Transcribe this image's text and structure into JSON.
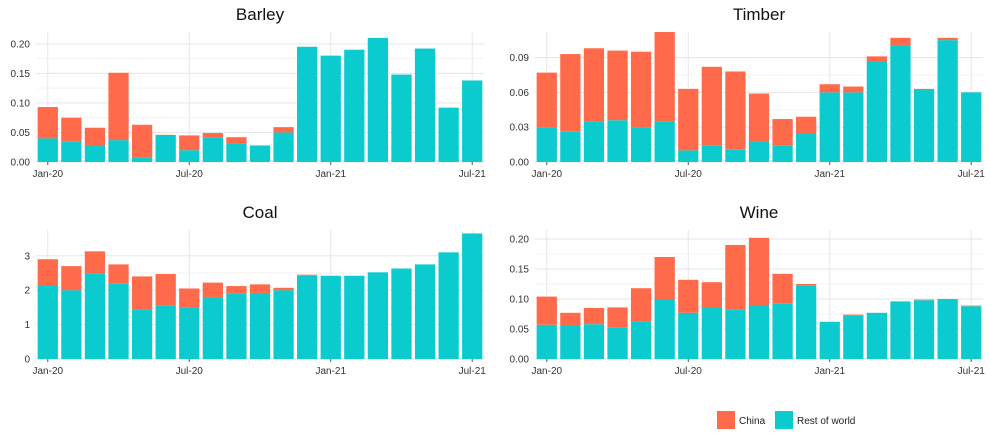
{
  "legend": {
    "items": [
      {
        "label": "China",
        "color": "#FF6B4A"
      },
      {
        "label": "Rest of world",
        "color": "#0CCBCF"
      }
    ]
  },
  "chart_data": [
    {
      "type": "bar",
      "stacked": true,
      "title": "Barley",
      "categories": [
        "Jan-20",
        "Feb-20",
        "Mar-20",
        "Apr-20",
        "May-20",
        "Jun-20",
        "Jul-20",
        "Aug-20",
        "Sep-20",
        "Oct-20",
        "Nov-20",
        "Dec-20",
        "Jan-21",
        "Feb-21",
        "Mar-21",
        "Apr-21",
        "May-21",
        "Jun-21",
        "Jul-21"
      ],
      "series": [
        {
          "name": "Rest of world",
          "values": [
            0.04,
            0.035,
            0.027,
            0.037,
            0.008,
            0.044,
            0.02,
            0.042,
            0.032,
            0.028,
            0.05,
            0.195,
            0.18,
            0.19,
            0.21,
            0.148,
            0.192,
            0.092,
            0.138
          ]
        },
        {
          "name": "China",
          "values": [
            0.053,
            0.04,
            0.031,
            0.114,
            0.055,
            0.002,
            0.025,
            0.007,
            0.01,
            0.0,
            0.009,
            0.0,
            0.0,
            0.0,
            0.0,
            0.0,
            0.0,
            0.0,
            0.0
          ]
        }
      ],
      "x_tick_labels": [
        "Jan-20",
        "Jul-20",
        "Jan-21",
        "Jul-21"
      ],
      "y_ticks": [
        0.0,
        0.05,
        0.1,
        0.15,
        0.2
      ],
      "y_tick_labels": [
        "0.00",
        "0.05",
        "0.10",
        "0.15",
        "0.20"
      ],
      "ylim": [
        0,
        0.22
      ]
    },
    {
      "type": "bar",
      "stacked": true,
      "title": "Timber",
      "categories": [
        "Jan-20",
        "Feb-20",
        "Mar-20",
        "Apr-20",
        "May-20",
        "Jun-20",
        "Jul-20",
        "Aug-20",
        "Sep-20",
        "Oct-20",
        "Nov-20",
        "Dec-20",
        "Jan-21",
        "Feb-21",
        "Mar-21",
        "Apr-21",
        "May-21",
        "Jun-21",
        "Jul-21"
      ],
      "series": [
        {
          "name": "Rest of world",
          "values": [
            0.03,
            0.026,
            0.035,
            0.036,
            0.03,
            0.035,
            0.01,
            0.014,
            0.011,
            0.018,
            0.014,
            0.025,
            0.06,
            0.06,
            0.087,
            0.1,
            0.062,
            0.105,
            0.06
          ]
        },
        {
          "name": "China",
          "values": [
            0.047,
            0.067,
            0.063,
            0.06,
            0.065,
            0.077,
            0.053,
            0.068,
            0.067,
            0.041,
            0.023,
            0.014,
            0.007,
            0.005,
            0.004,
            0.007,
            0.001,
            0.002,
            0.0
          ]
        }
      ],
      "x_tick_labels": [
        "Jan-20",
        "Jul-20",
        "Jan-21",
        "Jul-21"
      ],
      "y_ticks": [
        0.0,
        0.03,
        0.06,
        0.09
      ],
      "y_tick_labels": [
        "0.00",
        "0.03",
        "0.06",
        "0.09"
      ],
      "ylim": [
        0,
        0.112
      ]
    },
    {
      "type": "bar",
      "stacked": true,
      "title": "Coal",
      "categories": [
        "Jan-20",
        "Feb-20",
        "Mar-20",
        "Apr-20",
        "May-20",
        "Jun-20",
        "Jul-20",
        "Aug-20",
        "Sep-20",
        "Oct-20",
        "Nov-20",
        "Dec-20",
        "Jan-21",
        "Feb-21",
        "Mar-21",
        "Apr-21",
        "May-21",
        "Jun-21",
        "Jul-21"
      ],
      "series": [
        {
          "name": "Rest of world",
          "values": [
            2.15,
            2.0,
            2.48,
            2.2,
            1.45,
            1.55,
            1.5,
            1.8,
            1.9,
            1.92,
            2.0,
            2.42,
            2.42,
            2.42,
            2.52,
            2.63,
            2.75,
            3.1,
            3.65
          ]
        },
        {
          "name": "China",
          "values": [
            0.75,
            0.7,
            0.65,
            0.55,
            0.95,
            0.92,
            0.55,
            0.42,
            0.22,
            0.25,
            0.07,
            0.03,
            0.0,
            0.0,
            0.0,
            0.0,
            0.0,
            0.0,
            0.0
          ]
        }
      ],
      "x_tick_labels": [
        "Jan-20",
        "Jul-20",
        "Jan-21",
        "Jul-21"
      ],
      "y_ticks": [
        0,
        1,
        2,
        3
      ],
      "y_tick_labels": [
        "0",
        "1",
        "2",
        "3"
      ],
      "ylim": [
        0,
        3.75
      ]
    },
    {
      "type": "bar",
      "stacked": true,
      "title": "Wine",
      "categories": [
        "Jan-20",
        "Feb-20",
        "Mar-20",
        "Apr-20",
        "May-20",
        "Jun-20",
        "Jul-20",
        "Aug-20",
        "Sep-20",
        "Oct-20",
        "Nov-20",
        "Dec-20",
        "Jan-21",
        "Feb-21",
        "Mar-21",
        "Apr-21",
        "May-21",
        "Jun-21",
        "Jul-21"
      ],
      "series": [
        {
          "name": "Rest of world",
          "values": [
            0.057,
            0.055,
            0.058,
            0.053,
            0.063,
            0.1,
            0.077,
            0.085,
            0.083,
            0.09,
            0.092,
            0.122,
            0.062,
            0.073,
            0.077,
            0.096,
            0.098,
            0.1,
            0.088
          ]
        },
        {
          "name": "China",
          "values": [
            0.047,
            0.022,
            0.027,
            0.033,
            0.055,
            0.07,
            0.055,
            0.043,
            0.107,
            0.112,
            0.05,
            0.003,
            0.0,
            0.001,
            0.0,
            0.0,
            0.001,
            0.0,
            0.001
          ]
        }
      ],
      "x_tick_labels": [
        "Jan-20",
        "Jul-20",
        "Jan-21",
        "Jul-21"
      ],
      "y_ticks": [
        0.0,
        0.05,
        0.1,
        0.15,
        0.2
      ],
      "y_tick_labels": [
        "0.00",
        "0.05",
        "0.10",
        "0.15",
        "0.20"
      ],
      "ylim": [
        0,
        0.215
      ]
    }
  ]
}
